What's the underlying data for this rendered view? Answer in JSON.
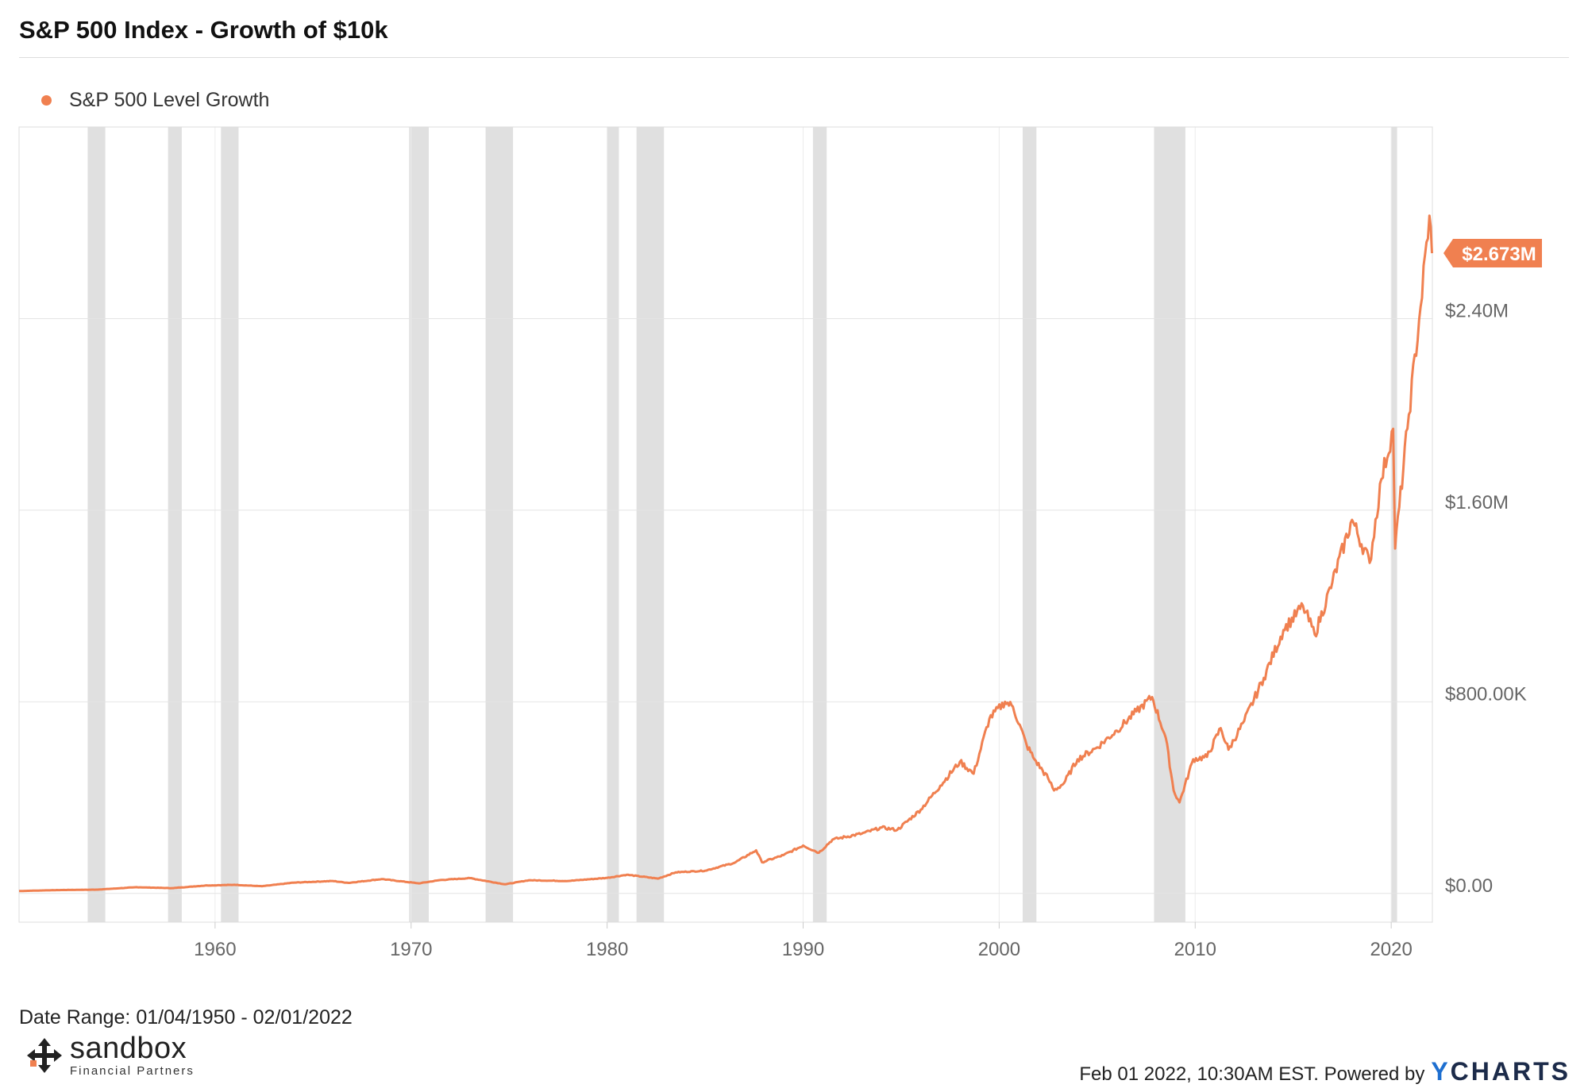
{
  "title": "S&P 500 Index - Growth of $10k",
  "legend": {
    "label": "S&P 500 Level Growth",
    "color": "#f08050"
  },
  "footer": {
    "date_range": "Date Range: 01/04/1950 - 02/01/2022",
    "timestamp": "Feb 01 2022, 10:30AM EST. Powered by",
    "provider": "CHARTS",
    "provider_initial": "Y"
  },
  "brand": {
    "name": "sandbox",
    "subtitle": "Financial Partners",
    "icon": "arrows-cross-icon"
  },
  "chart_data": {
    "type": "line",
    "series": [
      {
        "name": "S&P 500 Level Growth",
        "color": "#f08050",
        "last_value_label": "$2.673M",
        "points": [
          [
            1950.0,
            10000
          ],
          [
            1952.0,
            14000
          ],
          [
            1954.0,
            16000
          ],
          [
            1956.0,
            26000
          ],
          [
            1957.8,
            22000
          ],
          [
            1959.5,
            33000
          ],
          [
            1961.0,
            36000
          ],
          [
            1962.4,
            30000
          ],
          [
            1964.0,
            45000
          ],
          [
            1966.0,
            52000
          ],
          [
            1966.8,
            44000
          ],
          [
            1968.5,
            60000
          ],
          [
            1970.4,
            42000
          ],
          [
            1971.5,
            56000
          ],
          [
            1973.0,
            64000
          ],
          [
            1974.8,
            38000
          ],
          [
            1976.0,
            55000
          ],
          [
            1978.0,
            52000
          ],
          [
            1980.0,
            65000
          ],
          [
            1981.0,
            78000
          ],
          [
            1982.6,
            62000
          ],
          [
            1983.5,
            88000
          ],
          [
            1985.0,
            95000
          ],
          [
            1986.5,
            128000
          ],
          [
            1987.6,
            180000
          ],
          [
            1987.9,
            130000
          ],
          [
            1989.0,
            160000
          ],
          [
            1990.0,
            200000
          ],
          [
            1990.8,
            170000
          ],
          [
            1991.5,
            225000
          ],
          [
            1993.0,
            250000
          ],
          [
            1994.0,
            275000
          ],
          [
            1994.8,
            265000
          ],
          [
            1996.0,
            350000
          ],
          [
            1997.0,
            450000
          ],
          [
            1998.0,
            550000
          ],
          [
            1998.7,
            500000
          ],
          [
            1999.5,
            730000
          ],
          [
            2000.3,
            800000
          ],
          [
            2000.7,
            780000
          ],
          [
            2001.4,
            620000
          ],
          [
            2001.8,
            560000
          ],
          [
            2002.5,
            480000
          ],
          [
            2002.8,
            430000
          ],
          [
            2003.3,
            460000
          ],
          [
            2004.0,
            560000
          ],
          [
            2005.0,
            610000
          ],
          [
            2006.0,
            680000
          ],
          [
            2007.0,
            760000
          ],
          [
            2007.8,
            820000
          ],
          [
            2008.5,
            650000
          ],
          [
            2008.9,
            430000
          ],
          [
            2009.2,
            380000
          ],
          [
            2009.9,
            560000
          ],
          [
            2010.6,
            570000
          ],
          [
            2011.3,
            690000
          ],
          [
            2011.7,
            600000
          ],
          [
            2012.5,
            720000
          ],
          [
            2013.5,
            900000
          ],
          [
            2014.5,
            1100000
          ],
          [
            2015.5,
            1200000
          ],
          [
            2016.1,
            1080000
          ],
          [
            2017.0,
            1300000
          ],
          [
            2018.0,
            1560000
          ],
          [
            2018.9,
            1380000
          ],
          [
            2019.5,
            1730000
          ],
          [
            2020.1,
            1940000
          ],
          [
            2020.2,
            1440000
          ],
          [
            2020.9,
            2000000
          ],
          [
            2021.5,
            2450000
          ],
          [
            2021.95,
            2830000
          ],
          [
            2022.08,
            2673000
          ]
        ]
      }
    ],
    "x_ticks": [
      "1960",
      "1970",
      "1980",
      "1990",
      "2000",
      "2010",
      "2020"
    ],
    "x_tick_values": [
      1960,
      1970,
      1980,
      1990,
      2000,
      2010,
      2020
    ],
    "y_ticks": [
      "$0.00",
      "$800.00K",
      "$1.60M",
      "$2.40M"
    ],
    "y_tick_values": [
      0,
      800000,
      1600000,
      2400000
    ],
    "xlim": [
      1950.0,
      2022.1
    ],
    "ylim": [
      -120000,
      3200000
    ],
    "recessions": [
      [
        1953.5,
        1954.4
      ],
      [
        1957.6,
        1958.3
      ],
      [
        1960.3,
        1961.2
      ],
      [
        1969.9,
        1970.9
      ],
      [
        1973.8,
        1975.2
      ],
      [
        1980.0,
        1980.6
      ],
      [
        1981.5,
        1982.9
      ],
      [
        1990.5,
        1991.2
      ],
      [
        2001.2,
        2001.9
      ],
      [
        2007.9,
        2009.5
      ],
      [
        2020.0,
        2020.3
      ]
    ],
    "recession_color": "#e0e0e0",
    "grid": true
  }
}
